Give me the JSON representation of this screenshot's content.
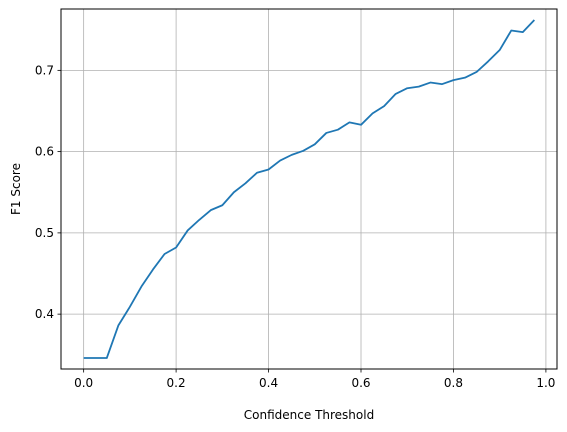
{
  "chart_data": {
    "type": "line",
    "title": "",
    "xlabel": "Confidence Threshold",
    "ylabel": "F1 Score",
    "xlim": [
      -0.049,
      1.024
    ],
    "ylim": [
      0.3325,
      0.7755
    ],
    "grid": true,
    "legend": "none",
    "xticks": [
      0.0,
      0.2,
      0.4,
      0.6,
      0.8,
      1.0
    ],
    "xtick_labels": [
      "0.0",
      "0.2",
      "0.4",
      "0.6",
      "0.8",
      "1.0"
    ],
    "yticks": [
      0.4,
      0.5,
      0.6,
      0.7
    ],
    "ytick_labels": [
      "0.4",
      "0.5",
      "0.6",
      "0.7"
    ],
    "series": [
      {
        "color": "#1f77b4",
        "x": [
          0.0,
          0.025,
          0.05,
          0.075,
          0.1,
          0.125,
          0.15,
          0.175,
          0.2,
          0.225,
          0.25,
          0.275,
          0.3,
          0.325,
          0.35,
          0.375,
          0.4,
          0.425,
          0.45,
          0.475,
          0.5,
          0.525,
          0.55,
          0.575,
          0.6,
          0.625,
          0.65,
          0.675,
          0.7,
          0.725,
          0.75,
          0.775,
          0.8,
          0.825,
          0.85,
          0.875,
          0.9,
          0.925,
          0.95,
          0.975
        ],
        "y": [
          0.346,
          0.346,
          0.346,
          0.386,
          0.409,
          0.434,
          0.455,
          0.474,
          0.482,
          0.503,
          0.516,
          0.528,
          0.534,
          0.55,
          0.561,
          0.574,
          0.578,
          0.589,
          0.596,
          0.601,
          0.609,
          0.623,
          0.627,
          0.636,
          0.633,
          0.647,
          0.656,
          0.671,
          0.678,
          0.68,
          0.685,
          0.683,
          0.688,
          0.691,
          0.698,
          0.711,
          0.725,
          0.749,
          0.747,
          0.762
        ]
      }
    ]
  }
}
